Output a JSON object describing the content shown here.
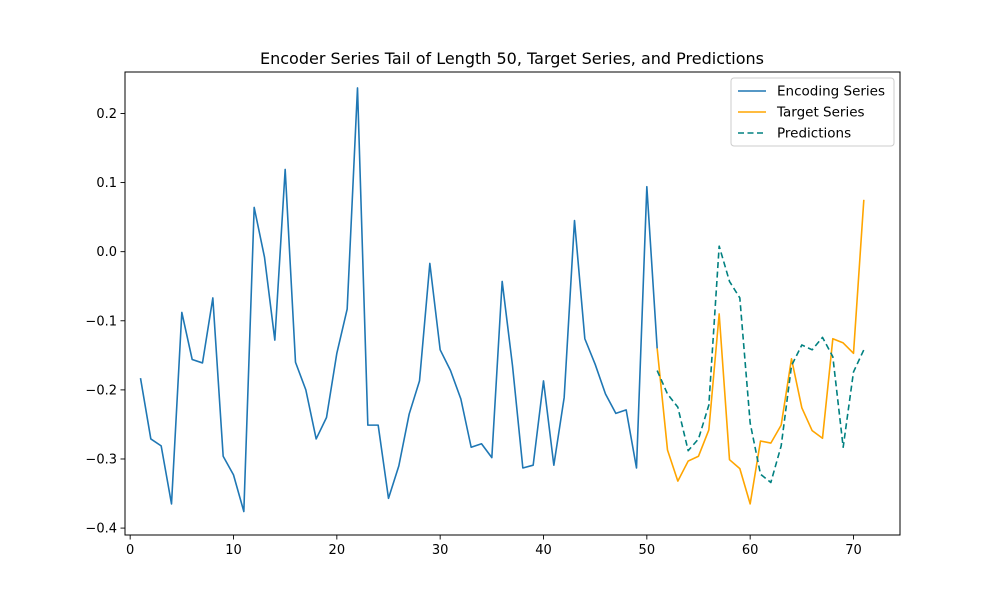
{
  "chart_data": {
    "type": "line",
    "title": "Encoder Series Tail of Length 50, Target Series, and Predictions",
    "xlabel": "",
    "ylabel": "",
    "xlim": [
      -0.5,
      74.5
    ],
    "ylim": [
      -0.41,
      0.26
    ],
    "xticks": [
      0,
      10,
      20,
      30,
      40,
      50,
      60,
      70
    ],
    "yticks": [
      -0.4,
      -0.3,
      -0.2,
      -0.1,
      0.0,
      0.1,
      0.2
    ],
    "legend_position": "top-right",
    "grid": false,
    "series": [
      {
        "name": "Encoding Series",
        "color": "#1f77b4",
        "style": "solid",
        "x": [
          1,
          2,
          3,
          4,
          5,
          6,
          7,
          8,
          9,
          10,
          11,
          12,
          13,
          14,
          15,
          16,
          17,
          18,
          19,
          20,
          21,
          22,
          23,
          24,
          25,
          26,
          27,
          28,
          29,
          30,
          31,
          32,
          33,
          34,
          35,
          36,
          37,
          38,
          39,
          40,
          41,
          42,
          43,
          44,
          45,
          46,
          47,
          48,
          49,
          50,
          51
        ],
        "y": [
          -0.183,
          -0.271,
          -0.281,
          -0.365,
          -0.088,
          -0.156,
          -0.161,
          -0.067,
          -0.296,
          -0.323,
          -0.376,
          0.064,
          -0.008,
          -0.128,
          0.119,
          -0.16,
          -0.2,
          -0.271,
          -0.24,
          -0.147,
          -0.083,
          0.237,
          -0.251,
          -0.251,
          -0.357,
          -0.31,
          -0.235,
          -0.187,
          -0.017,
          -0.142,
          -0.172,
          -0.213,
          -0.283,
          -0.278,
          -0.298,
          -0.043,
          -0.165,
          -0.313,
          -0.309,
          -0.187,
          -0.309,
          -0.211,
          0.045,
          -0.126,
          -0.163,
          -0.206,
          -0.234,
          -0.229,
          -0.313,
          0.094,
          -0.14
        ]
      },
      {
        "name": "Target Series",
        "color": "#ffa500",
        "style": "solid",
        "x": [
          51,
          52,
          53,
          54,
          55,
          56,
          57,
          58,
          59,
          60,
          61,
          62,
          63,
          64,
          65,
          66,
          67,
          68,
          69,
          70,
          71
        ],
        "y": [
          -0.14,
          -0.287,
          -0.332,
          -0.303,
          -0.296,
          -0.258,
          -0.09,
          -0.301,
          -0.314,
          -0.365,
          -0.274,
          -0.277,
          -0.251,
          -0.155,
          -0.226,
          -0.259,
          -0.27,
          -0.126,
          -0.132,
          -0.147,
          0.075
        ]
      },
      {
        "name": "Predictions",
        "color": "#008080",
        "style": "dashed",
        "x": [
          51,
          52,
          53,
          54,
          55,
          56,
          57,
          58,
          59,
          60,
          61,
          62,
          63,
          64,
          65,
          66,
          67,
          68,
          69,
          70,
          71
        ],
        "y": [
          -0.172,
          -0.206,
          -0.225,
          -0.288,
          -0.271,
          -0.222,
          0.008,
          -0.043,
          -0.067,
          -0.248,
          -0.322,
          -0.334,
          -0.281,
          -0.165,
          -0.135,
          -0.142,
          -0.124,
          -0.152,
          -0.283,
          -0.174,
          -0.142
        ]
      }
    ]
  }
}
